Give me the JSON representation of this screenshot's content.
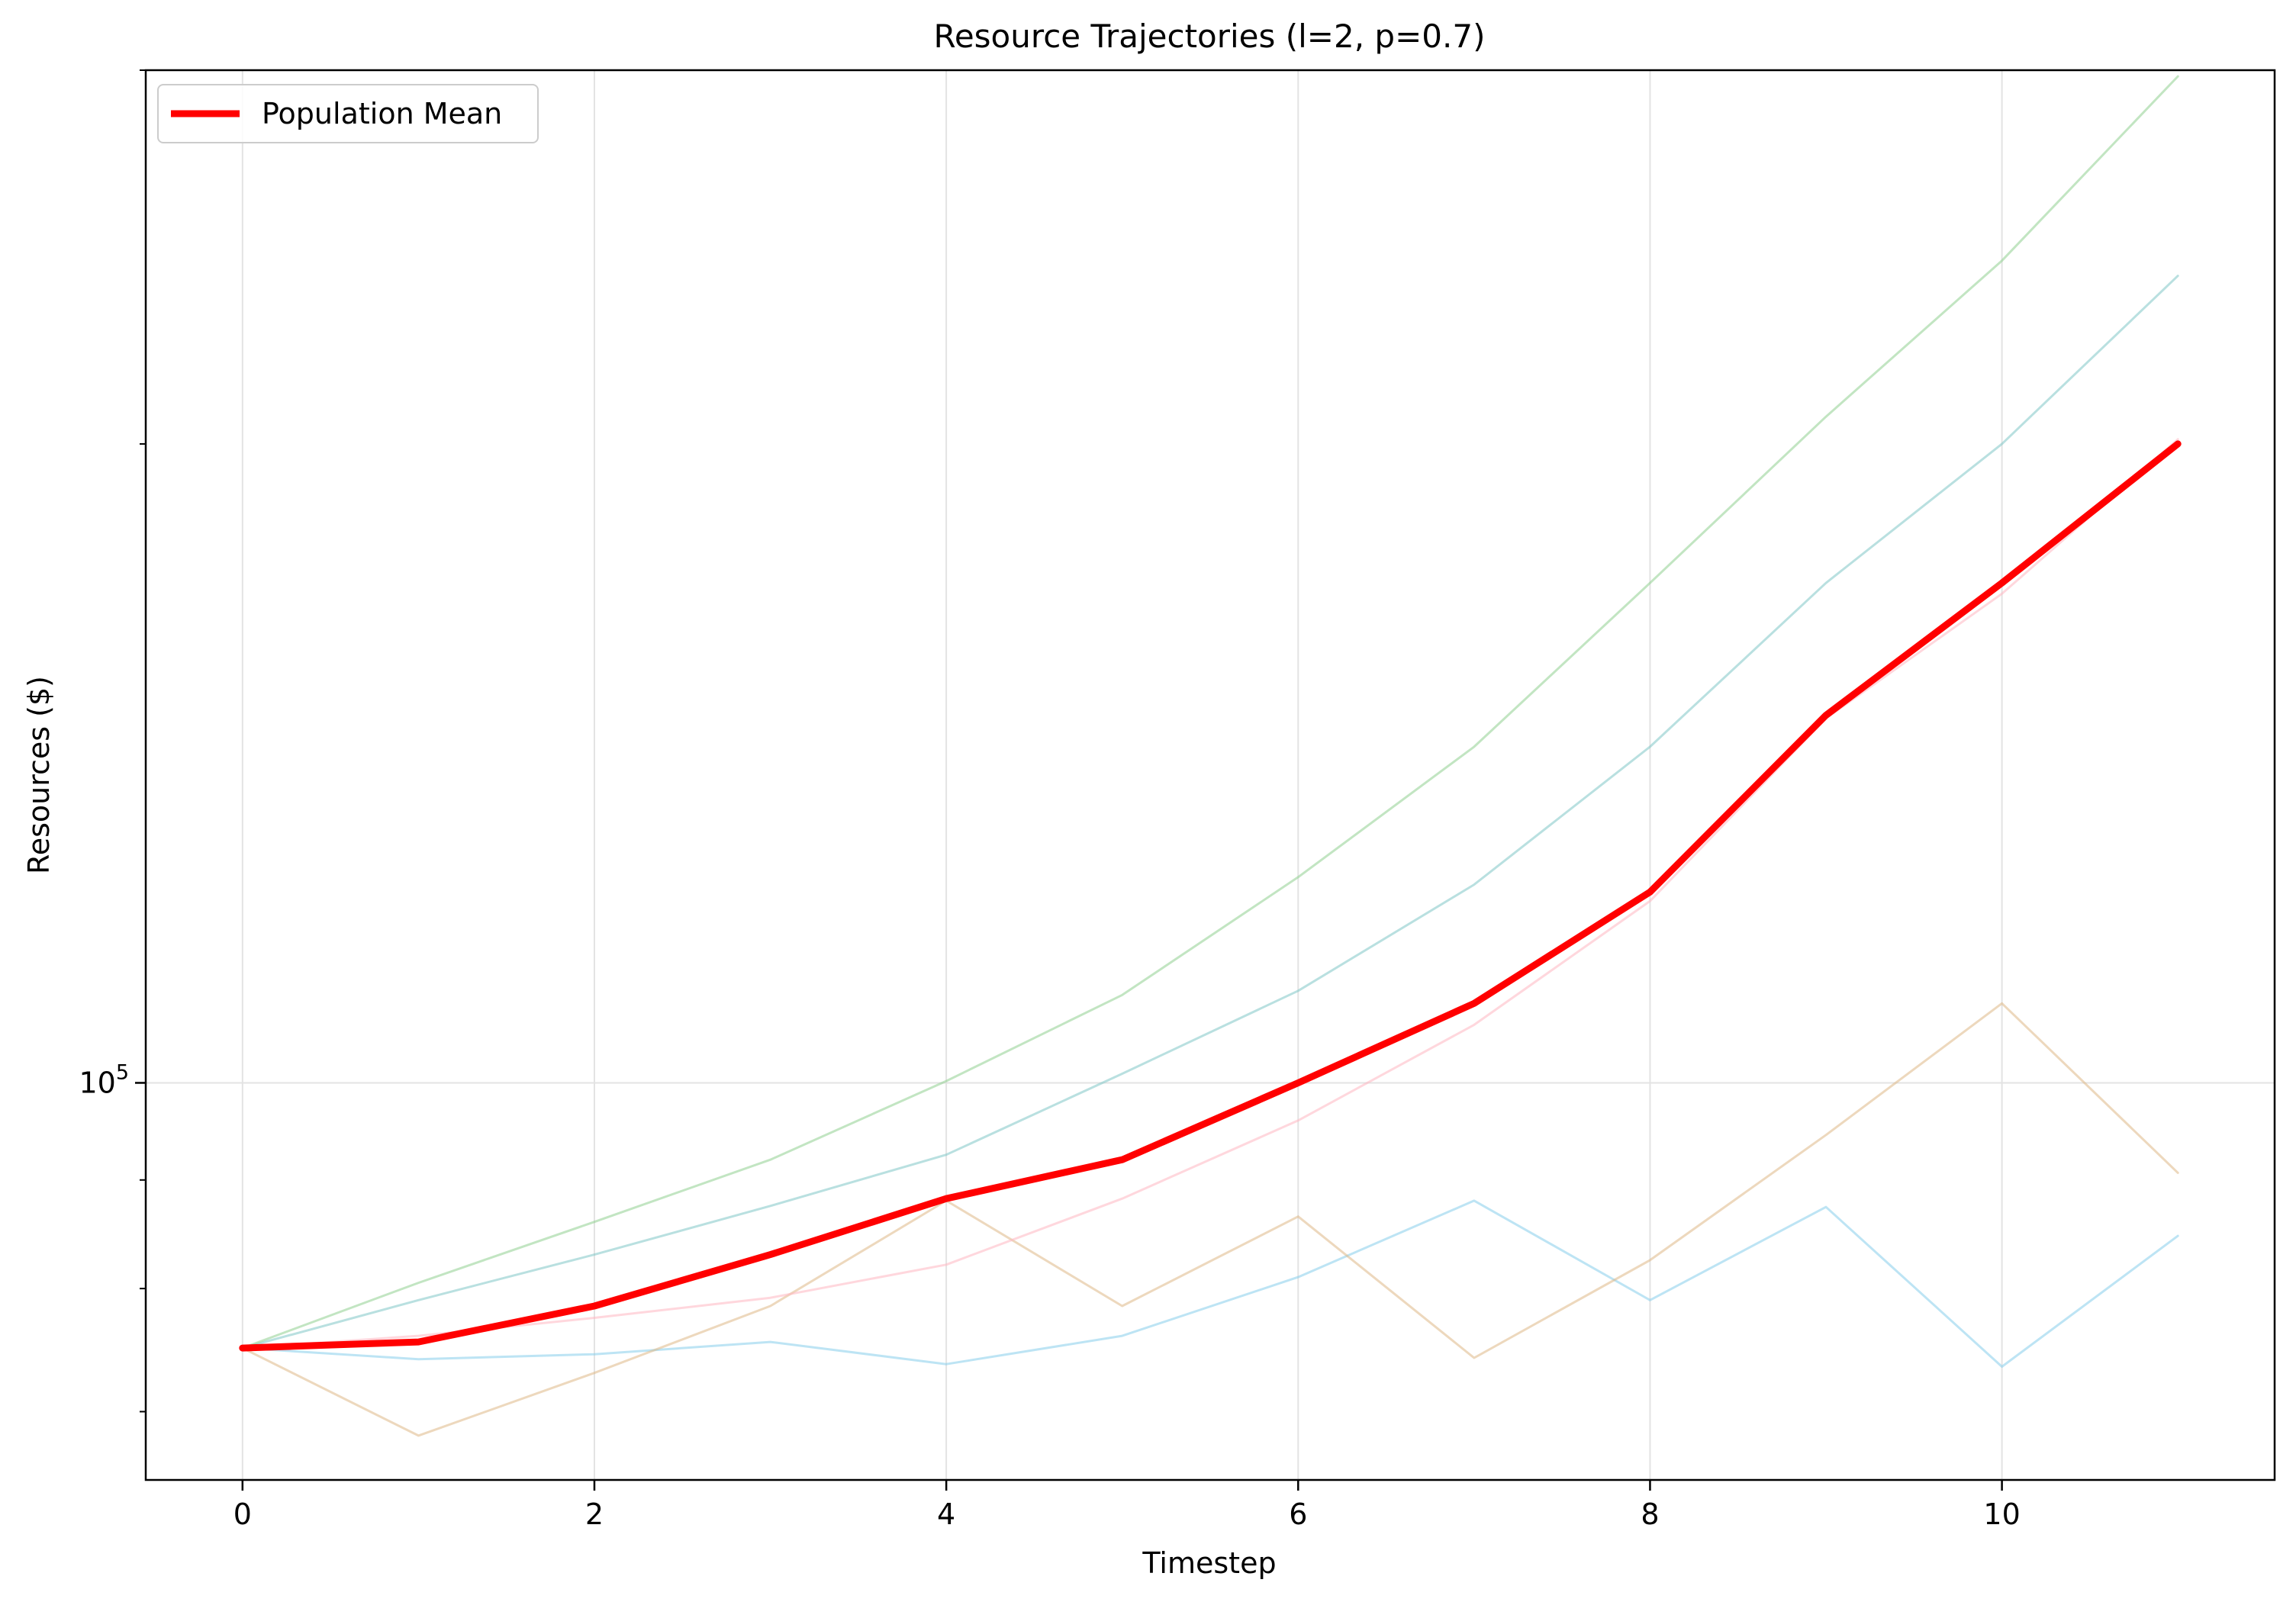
{
  "chart_data": {
    "type": "line",
    "title": "Resource Trajectories (l=2, p=0.7)",
    "xlabel": "Timestep",
    "ylabel": "Resources ($)",
    "x": [
      0,
      1,
      2,
      3,
      4,
      5,
      6,
      7,
      8,
      9,
      10,
      11
    ],
    "x_ticks": [
      "0",
      "2",
      "4",
      "6",
      "8",
      "10"
    ],
    "y_scale": "log",
    "ylim": [
      65000,
      300000
    ],
    "y_major_tick_value": 100000,
    "y_major_tick_label": {
      "base": "10",
      "exponent": "5"
    },
    "y_minor_ticks": [
      70000,
      80000,
      90000,
      200000,
      300000
    ],
    "grid": true,
    "legend_placement": "upper left",
    "series": [
      {
        "role": "individual",
        "color": "#87CEEB",
        "values": [
          75000,
          74100,
          74500,
          75500,
          73700,
          76000,
          81000,
          88000,
          79000,
          87400,
          73500,
          84700
        ]
      },
      {
        "role": "individual",
        "color": "#DEB887",
        "values": [
          75000,
          68200,
          73000,
          78500,
          88000,
          78500,
          86500,
          74200,
          82500,
          94500,
          109000,
          90700
        ]
      },
      {
        "role": "individual",
        "color": "#FFB6C1",
        "values": [
          75000,
          76000,
          77500,
          79200,
          82100,
          88200,
          96000,
          106500,
          121800,
          148500,
          170000,
          201000
        ]
      },
      {
        "role": "individual",
        "color": "#7FC7C7",
        "values": [
          75000,
          79000,
          83000,
          87500,
          92500,
          101000,
          110500,
          124000,
          144000,
          172000,
          200000,
          240000
        ]
      },
      {
        "role": "individual",
        "color": "#90D090",
        "values": [
          75000,
          80500,
          86000,
          92000,
          100200,
          110000,
          125000,
          144000,
          172000,
          206000,
          244000,
          298000
        ]
      },
      {
        "name": "Population Mean",
        "role": "mean",
        "color": "#FF0000",
        "values": [
          75000,
          75500,
          78500,
          83000,
          88200,
          92000,
          100000,
          109000,
          123000,
          149000,
          172000,
          200000
        ]
      }
    ]
  }
}
